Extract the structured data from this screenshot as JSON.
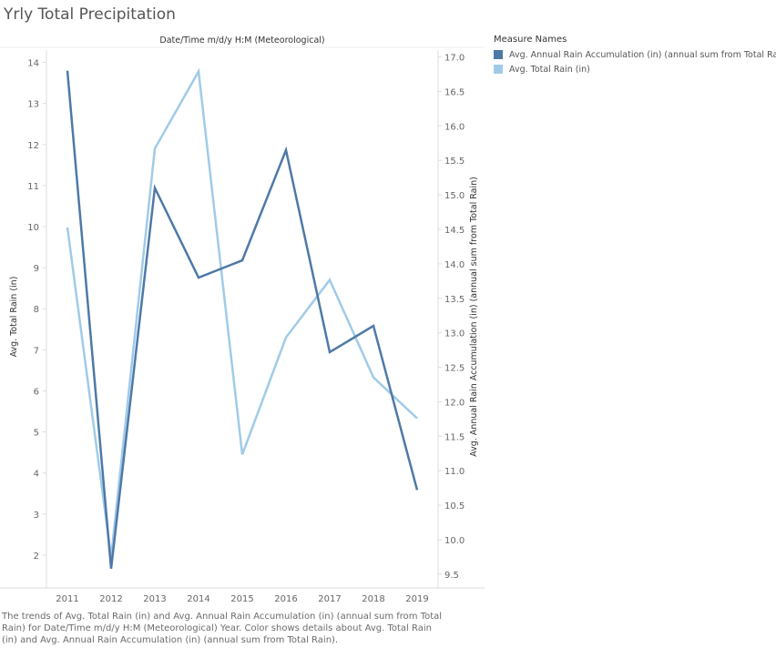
{
  "title": "Yrly Total Precipitation",
  "caption": "The trends of Avg. Total Rain (in) and Avg. Annual Rain Accumulation (in) (annual sum from Total Rain) for Date/Time m/d/y H:M (Meteorological) Year.  Color shows details about Avg. Total Rain (in) and Avg. Annual Rain Accumulation (in) (annual sum from Total Rain).",
  "legend": {
    "title": "Measure Names",
    "items": [
      {
        "label": "Avg. Annual Rain Accumulation (in) (annual sum from Total Rain)",
        "color": "#4e79a7"
      },
      {
        "label": "Avg. Total Rain (in)",
        "color": "#a0cbe8"
      }
    ]
  },
  "chart_data": {
    "type": "line",
    "x_header": "Date/Time m/d/y H:M (Meteorological)",
    "categories": [
      "2011",
      "2012",
      "2013",
      "2014",
      "2015",
      "2016",
      "2017",
      "2018",
      "2019"
    ],
    "left_axis": {
      "label": "Avg. Total Rain (in)",
      "range": [
        1.2,
        14.3
      ],
      "ticks": [
        2,
        3,
        4,
        5,
        6,
        7,
        8,
        9,
        10,
        11,
        12,
        13,
        14
      ],
      "tick_labels": [
        "2",
        "3",
        "4",
        "5",
        "6",
        "7",
        "8",
        "9",
        "10",
        "11",
        "12",
        "13",
        "14"
      ]
    },
    "right_axis": {
      "label": "Avg. Annual Rain Accumulation (in) (annual sum from Total Rain)",
      "range": [
        9.3,
        17.1
      ],
      "ticks": [
        9.5,
        10.0,
        10.5,
        11.0,
        11.5,
        12.0,
        12.5,
        13.0,
        13.5,
        14.0,
        14.5,
        15.0,
        15.5,
        16.0,
        16.5,
        17.0
      ],
      "tick_labels": [
        "9.5",
        "10.0",
        "10.5",
        "11.0",
        "11.5",
        "12.0",
        "12.5",
        "13.0",
        "13.5",
        "14.0",
        "14.5",
        "15.0",
        "15.5",
        "16.0",
        "16.5",
        "17.0"
      ]
    },
    "series": [
      {
        "name": "Avg. Annual Rain Accumulation (in) (annual sum from Total Rain)",
        "axis": "right",
        "color": "#4e79a7",
        "values": [
          16.8,
          9.58,
          15.1,
          13.8,
          14.05,
          15.65,
          12.72,
          13.1,
          10.72
        ]
      },
      {
        "name": "Avg. Total Rain (in)",
        "axis": "left",
        "color": "#a0cbe8",
        "values": [
          9.98,
          1.95,
          11.9,
          13.78,
          4.45,
          7.3,
          8.7,
          6.33,
          5.33
        ]
      }
    ],
    "grid": false
  }
}
